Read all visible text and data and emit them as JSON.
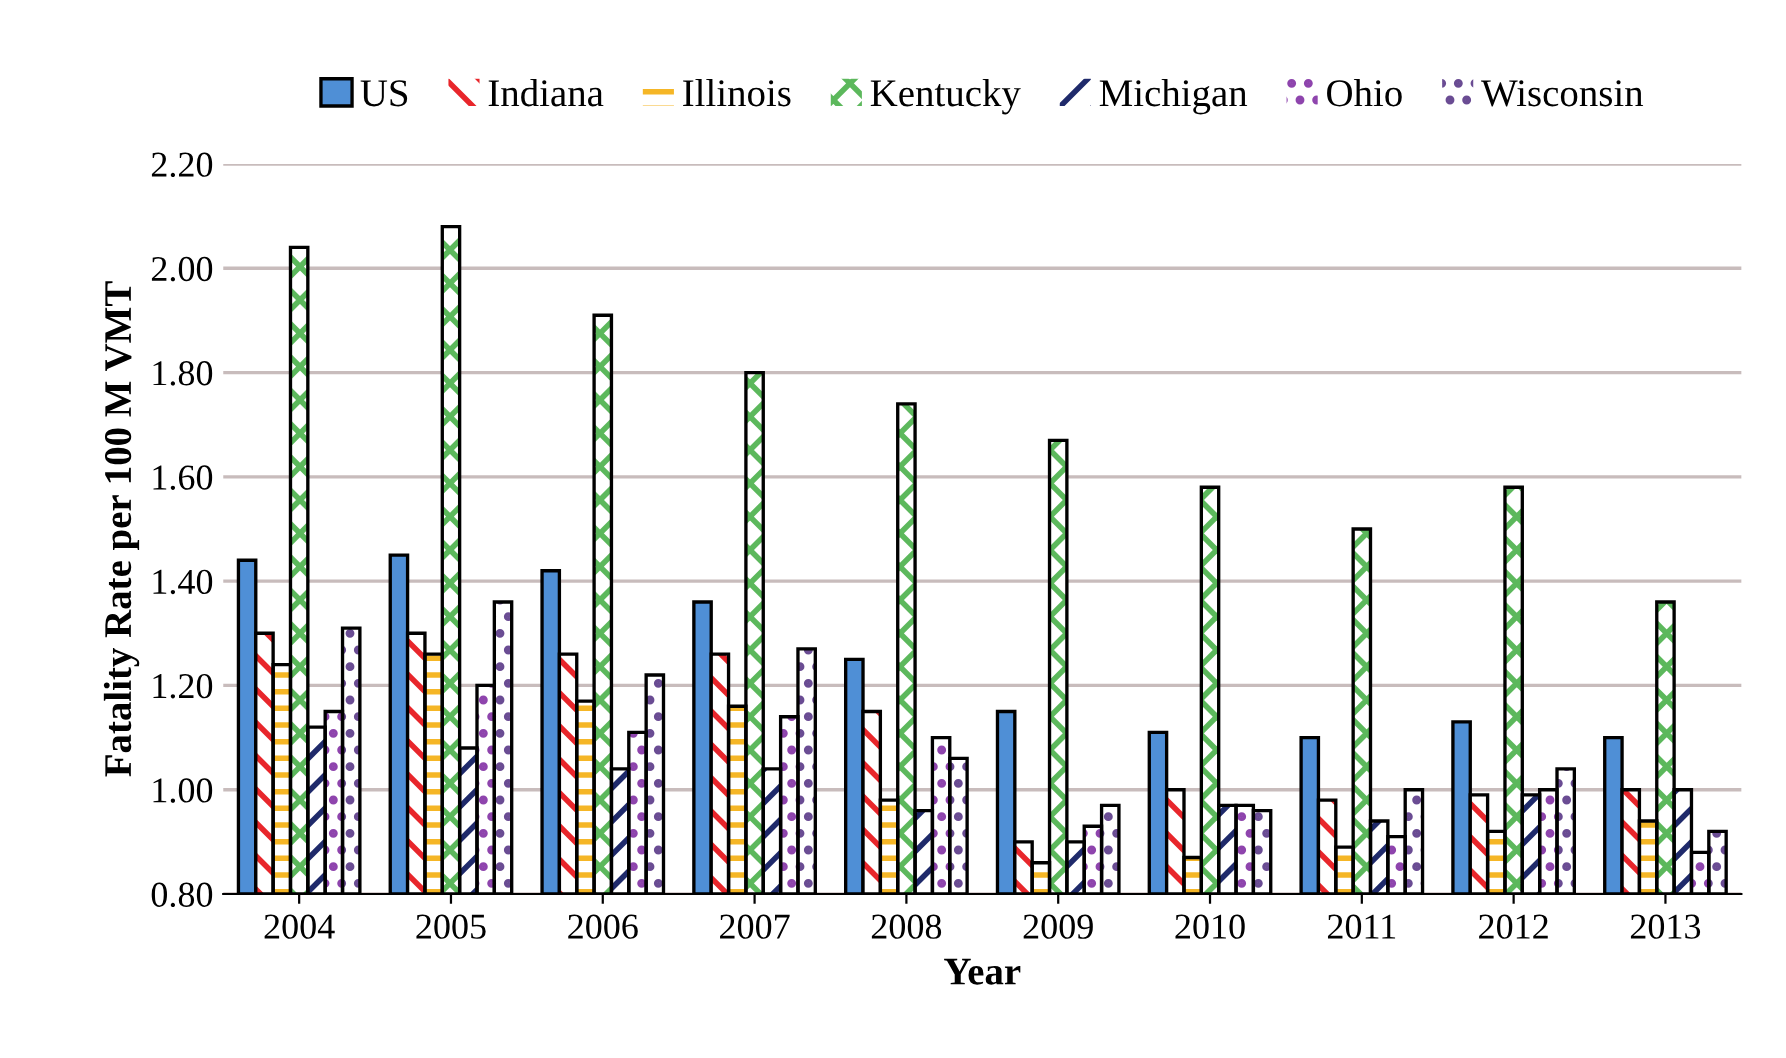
{
  "chart_data": {
    "type": "bar",
    "xlabel": "Year",
    "ylabel": "Fatality Rate per 100 M VMT",
    "categories": [
      "2004",
      "2005",
      "2006",
      "2007",
      "2008",
      "2009",
      "2010",
      "2011",
      "2012",
      "2013"
    ],
    "series": [
      {
        "name": "US",
        "color": "#4f8fd6",
        "values": [
          1.44,
          1.45,
          1.42,
          1.36,
          1.25,
          1.15,
          1.11,
          1.1,
          1.13,
          1.1
        ]
      },
      {
        "name": "Indiana",
        "color": "#e8262b",
        "values": [
          1.3,
          1.3,
          1.26,
          1.26,
          1.15,
          0.9,
          1.0,
          0.98,
          0.99,
          1.0
        ]
      },
      {
        "name": "Illinois",
        "color": "#f5b626",
        "values": [
          1.24,
          1.26,
          1.17,
          1.16,
          0.98,
          0.86,
          0.87,
          0.89,
          0.92,
          0.94
        ]
      },
      {
        "name": "Kentucky",
        "color": "#5cb85c",
        "values": [
          2.04,
          2.08,
          1.91,
          1.8,
          1.74,
          1.67,
          1.58,
          1.5,
          1.58,
          1.36
        ]
      },
      {
        "name": "Michigan",
        "color": "#1f2a6b",
        "values": [
          1.12,
          1.08,
          1.04,
          1.04,
          0.96,
          0.9,
          0.97,
          0.94,
          0.99,
          1.0
        ]
      },
      {
        "name": "Ohio",
        "color": "#8e44ad",
        "values": [
          1.15,
          1.2,
          1.11,
          1.14,
          1.1,
          0.93,
          0.97,
          0.91,
          1.0,
          0.88
        ]
      },
      {
        "name": "Wisconsin",
        "color": "#6a4c93",
        "values": [
          1.31,
          1.36,
          1.22,
          1.27,
          1.06,
          0.97,
          0.96,
          1.0,
          1.04,
          0.92
        ]
      }
    ],
    "ylim": [
      0.8,
      2.2
    ],
    "yticks": [
      {
        "value": 0.8,
        "label": "0.80"
      },
      {
        "value": 1.0,
        "label": "1.00"
      },
      {
        "value": 1.2,
        "label": "1.20"
      },
      {
        "value": 1.4,
        "label": "1.40"
      },
      {
        "value": 1.6,
        "label": "1.60"
      },
      {
        "value": 1.8,
        "label": "1.80"
      },
      {
        "value": 2.0,
        "label": "2.00"
      },
      {
        "value": 2.2,
        "label": "2.20"
      }
    ],
    "grid": "y",
    "legend": "top"
  }
}
